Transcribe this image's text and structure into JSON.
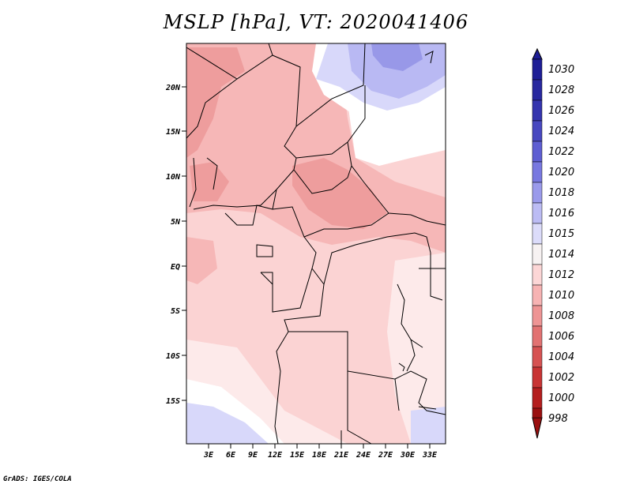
{
  "title": "MSLP [hPa], VT: 2020041406",
  "footer": "GrADS: IGES/COLA",
  "latitude_labels": [
    "20N",
    "15N",
    "10N",
    "5N",
    "EQ",
    "5S",
    "10S",
    "15S"
  ],
  "longitude_labels": [
    "3E",
    "6E",
    "9E",
    "12E",
    "15E",
    "18E",
    "21E",
    "24E",
    "27E",
    "30E",
    "33E"
  ],
  "colorbar": {
    "labels": [
      "1030",
      "1028",
      "1026",
      "1024",
      "1022",
      "1020",
      "1018",
      "1016",
      "1015",
      "1014",
      "1012",
      "1010",
      "1008",
      "1006",
      "1004",
      "1002",
      "1000",
      "998"
    ],
    "colors": [
      "#1e1e96",
      "#28289f",
      "#3434ae",
      "#4848c0",
      "#5e5ed2",
      "#7878e0",
      "#9a9aeb",
      "#bcbcf4",
      "#dcdcfa",
      "#f7f2f2",
      "#fcd6d6",
      "#f7b3b3",
      "#ee9494",
      "#e27272",
      "#d65252",
      "#c83434",
      "#b41e1e",
      "#9a1010"
    ]
  },
  "field_colors": {
    "p1008": "#ee9d9d",
    "p1010": "#f6b7b7",
    "p1012": "#fbd3d3",
    "p1014": "#fdeaea",
    "p1015": "#ffffff",
    "p1016": "#d8d8fa",
    "p1018": "#b9b9f3",
    "p1020": "#9898e8"
  }
}
